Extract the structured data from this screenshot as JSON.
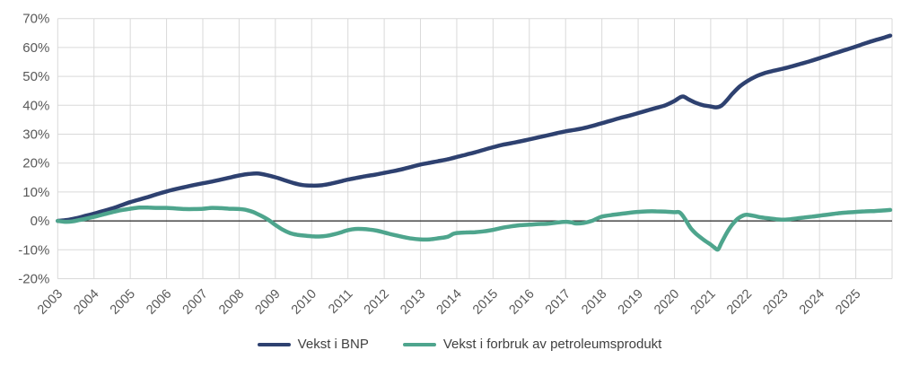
{
  "chart_data": {
    "type": "line",
    "title": "",
    "xlabel": "",
    "ylabel": "",
    "grid": true,
    "zero_line": true,
    "legend_position": "bottom",
    "x_axis": {
      "min": 2003,
      "max": 2026,
      "tick_labels": [
        "2003",
        "2004",
        "2005",
        "2006",
        "2007",
        "2008",
        "2009",
        "2010",
        "2011",
        "2012",
        "2013",
        "2014",
        "2015",
        "2016",
        "2017",
        "2018",
        "2019",
        "2020",
        "2021",
        "2022",
        "2023",
        "2024",
        "2025"
      ]
    },
    "y_axis": {
      "min": -20,
      "max": 70,
      "step": 10,
      "tick_labels": [
        "70%",
        "60%",
        "50%",
        "40%",
        "30%",
        "20%",
        "10%",
        "0%",
        "-10%",
        "-20%"
      ]
    },
    "series": [
      {
        "name": "Vekst i BNP",
        "color": "#2E4170",
        "points": [
          [
            2003.0,
            0
          ],
          [
            2003.25,
            0.3
          ],
          [
            2003.5,
            0.9
          ],
          [
            2003.75,
            1.7
          ],
          [
            2004,
            2.5
          ],
          [
            2004.25,
            3.4
          ],
          [
            2004.5,
            4.3
          ],
          [
            2004.75,
            5.4
          ],
          [
            2005,
            6.5
          ],
          [
            2005.25,
            7.4
          ],
          [
            2005.5,
            8.3
          ],
          [
            2005.75,
            9.3
          ],
          [
            2006,
            10.2
          ],
          [
            2006.25,
            11.0
          ],
          [
            2006.5,
            11.7
          ],
          [
            2006.75,
            12.4
          ],
          [
            2007,
            13.0
          ],
          [
            2007.25,
            13.6
          ],
          [
            2007.5,
            14.3
          ],
          [
            2007.75,
            15.0
          ],
          [
            2008,
            15.7
          ],
          [
            2008.25,
            16.2
          ],
          [
            2008.5,
            16.4
          ],
          [
            2008.75,
            15.9
          ],
          [
            2009,
            15.1
          ],
          [
            2009.25,
            14.1
          ],
          [
            2009.5,
            13.1
          ],
          [
            2009.75,
            12.4
          ],
          [
            2010,
            12.2
          ],
          [
            2010.25,
            12.3
          ],
          [
            2010.5,
            12.8
          ],
          [
            2010.75,
            13.5
          ],
          [
            2011,
            14.3
          ],
          [
            2011.25,
            14.9
          ],
          [
            2011.5,
            15.5
          ],
          [
            2011.75,
            16.0
          ],
          [
            2012,
            16.6
          ],
          [
            2012.25,
            17.2
          ],
          [
            2012.5,
            17.9
          ],
          [
            2012.75,
            18.7
          ],
          [
            2013,
            19.5
          ],
          [
            2013.25,
            20.1
          ],
          [
            2013.5,
            20.7
          ],
          [
            2013.75,
            21.3
          ],
          [
            2014,
            22.1
          ],
          [
            2014.25,
            22.9
          ],
          [
            2014.5,
            23.7
          ],
          [
            2014.75,
            24.6
          ],
          [
            2015,
            25.5
          ],
          [
            2015.25,
            26.3
          ],
          [
            2015.5,
            26.9
          ],
          [
            2015.75,
            27.5
          ],
          [
            2016,
            28.2
          ],
          [
            2016.25,
            28.9
          ],
          [
            2016.5,
            29.6
          ],
          [
            2016.75,
            30.3
          ],
          [
            2017,
            31.0
          ],
          [
            2017.25,
            31.5
          ],
          [
            2017.5,
            32.1
          ],
          [
            2017.75,
            32.9
          ],
          [
            2018,
            33.8
          ],
          [
            2018.25,
            34.7
          ],
          [
            2018.5,
            35.6
          ],
          [
            2018.75,
            36.4
          ],
          [
            2019,
            37.3
          ],
          [
            2019.25,
            38.2
          ],
          [
            2019.5,
            39.1
          ],
          [
            2019.75,
            40.0
          ],
          [
            2020,
            41.5
          ],
          [
            2020.15,
            42.7
          ],
          [
            2020.25,
            43.0
          ],
          [
            2020.4,
            42.0
          ],
          [
            2020.6,
            40.8
          ],
          [
            2020.8,
            40.0
          ],
          [
            2021,
            39.6
          ],
          [
            2021.15,
            39.3
          ],
          [
            2021.3,
            39.9
          ],
          [
            2021.45,
            41.8
          ],
          [
            2021.6,
            44.0
          ],
          [
            2021.8,
            46.5
          ],
          [
            2022,
            48.3
          ],
          [
            2022.25,
            50.0
          ],
          [
            2022.5,
            51.2
          ],
          [
            2022.75,
            52.0
          ],
          [
            2023,
            52.7
          ],
          [
            2023.25,
            53.5
          ],
          [
            2023.5,
            54.4
          ],
          [
            2023.75,
            55.3
          ],
          [
            2024,
            56.3
          ],
          [
            2024.25,
            57.3
          ],
          [
            2024.5,
            58.3
          ],
          [
            2024.75,
            59.3
          ],
          [
            2025,
            60.3
          ],
          [
            2025.25,
            61.4
          ],
          [
            2025.5,
            62.4
          ],
          [
            2025.75,
            63.3
          ],
          [
            2025.95,
            64.1
          ]
        ]
      },
      {
        "name": "Vekst i forbruk av petroleumsprodukt",
        "color": "#4EA58D",
        "points": [
          [
            2003.0,
            0
          ],
          [
            2003.2,
            -0.3
          ],
          [
            2003.4,
            -0.2
          ],
          [
            2003.6,
            0.3
          ],
          [
            2003.8,
            0.8
          ],
          [
            2004,
            1.4
          ],
          [
            2004.25,
            2.2
          ],
          [
            2004.5,
            3.0
          ],
          [
            2004.75,
            3.7
          ],
          [
            2005,
            4.2
          ],
          [
            2005.25,
            4.6
          ],
          [
            2005.5,
            4.6
          ],
          [
            2005.75,
            4.5
          ],
          [
            2006,
            4.5
          ],
          [
            2006.25,
            4.3
          ],
          [
            2006.5,
            4.1
          ],
          [
            2006.75,
            4.1
          ],
          [
            2007,
            4.2
          ],
          [
            2007.25,
            4.5
          ],
          [
            2007.5,
            4.4
          ],
          [
            2007.75,
            4.2
          ],
          [
            2008,
            4.1
          ],
          [
            2008.2,
            3.8
          ],
          [
            2008.4,
            3.0
          ],
          [
            2008.6,
            1.8
          ],
          [
            2008.8,
            0.4
          ],
          [
            2009,
            -1.4
          ],
          [
            2009.2,
            -3.0
          ],
          [
            2009.4,
            -4.2
          ],
          [
            2009.6,
            -4.8
          ],
          [
            2009.8,
            -5.1
          ],
          [
            2010,
            -5.3
          ],
          [
            2010.2,
            -5.4
          ],
          [
            2010.4,
            -5.2
          ],
          [
            2010.6,
            -4.7
          ],
          [
            2010.8,
            -4.0
          ],
          [
            2011,
            -3.2
          ],
          [
            2011.2,
            -2.8
          ],
          [
            2011.4,
            -2.8
          ],
          [
            2011.6,
            -3.0
          ],
          [
            2011.8,
            -3.4
          ],
          [
            2012,
            -4.0
          ],
          [
            2012.25,
            -4.8
          ],
          [
            2012.5,
            -5.5
          ],
          [
            2012.75,
            -6.1
          ],
          [
            2013,
            -6.4
          ],
          [
            2013.25,
            -6.4
          ],
          [
            2013.5,
            -6.0
          ],
          [
            2013.75,
            -5.5
          ],
          [
            2013.9,
            -4.5
          ],
          [
            2014,
            -4.2
          ],
          [
            2014.25,
            -4.0
          ],
          [
            2014.5,
            -3.9
          ],
          [
            2014.75,
            -3.6
          ],
          [
            2015,
            -3.1
          ],
          [
            2015.25,
            -2.4
          ],
          [
            2015.5,
            -1.9
          ],
          [
            2015.75,
            -1.5
          ],
          [
            2016,
            -1.3
          ],
          [
            2016.25,
            -1.1
          ],
          [
            2016.5,
            -1.0
          ],
          [
            2016.75,
            -0.6
          ],
          [
            2017,
            -0.3
          ],
          [
            2017.15,
            -0.5
          ],
          [
            2017.3,
            -0.9
          ],
          [
            2017.5,
            -0.7
          ],
          [
            2017.7,
            -0.1
          ],
          [
            2017.85,
            0.7
          ],
          [
            2018,
            1.5
          ],
          [
            2018.25,
            2.0
          ],
          [
            2018.5,
            2.4
          ],
          [
            2018.75,
            2.8
          ],
          [
            2019,
            3.1
          ],
          [
            2019.25,
            3.3
          ],
          [
            2019.5,
            3.3
          ],
          [
            2019.75,
            3.2
          ],
          [
            2020,
            3.0
          ],
          [
            2020.15,
            2.9
          ],
          [
            2020.3,
            0.5
          ],
          [
            2020.45,
            -2.5
          ],
          [
            2020.6,
            -4.5
          ],
          [
            2020.8,
            -6.5
          ],
          [
            2021,
            -8.2
          ],
          [
            2021.1,
            -9.2
          ],
          [
            2021.2,
            -9.9
          ],
          [
            2021.3,
            -7.5
          ],
          [
            2021.45,
            -4.0
          ],
          [
            2021.6,
            -1.2
          ],
          [
            2021.75,
            0.8
          ],
          [
            2021.9,
            1.9
          ],
          [
            2022,
            2.1
          ],
          [
            2022.2,
            1.7
          ],
          [
            2022.4,
            1.2
          ],
          [
            2022.6,
            0.9
          ],
          [
            2022.8,
            0.6
          ],
          [
            2023,
            0.4
          ],
          [
            2023.2,
            0.6
          ],
          [
            2023.4,
            0.9
          ],
          [
            2023.6,
            1.2
          ],
          [
            2023.8,
            1.5
          ],
          [
            2024,
            1.8
          ],
          [
            2024.25,
            2.2
          ],
          [
            2024.5,
            2.6
          ],
          [
            2024.75,
            2.9
          ],
          [
            2025,
            3.1
          ],
          [
            2025.25,
            3.3
          ],
          [
            2025.5,
            3.4
          ],
          [
            2025.75,
            3.6
          ],
          [
            2025.95,
            3.8
          ]
        ]
      }
    ]
  },
  "colors": {
    "background": "#FFFFFF",
    "grid": "#D9D9D9",
    "zero_line": "#262626",
    "axis_text": "#595959",
    "legend_text": "#404040"
  }
}
